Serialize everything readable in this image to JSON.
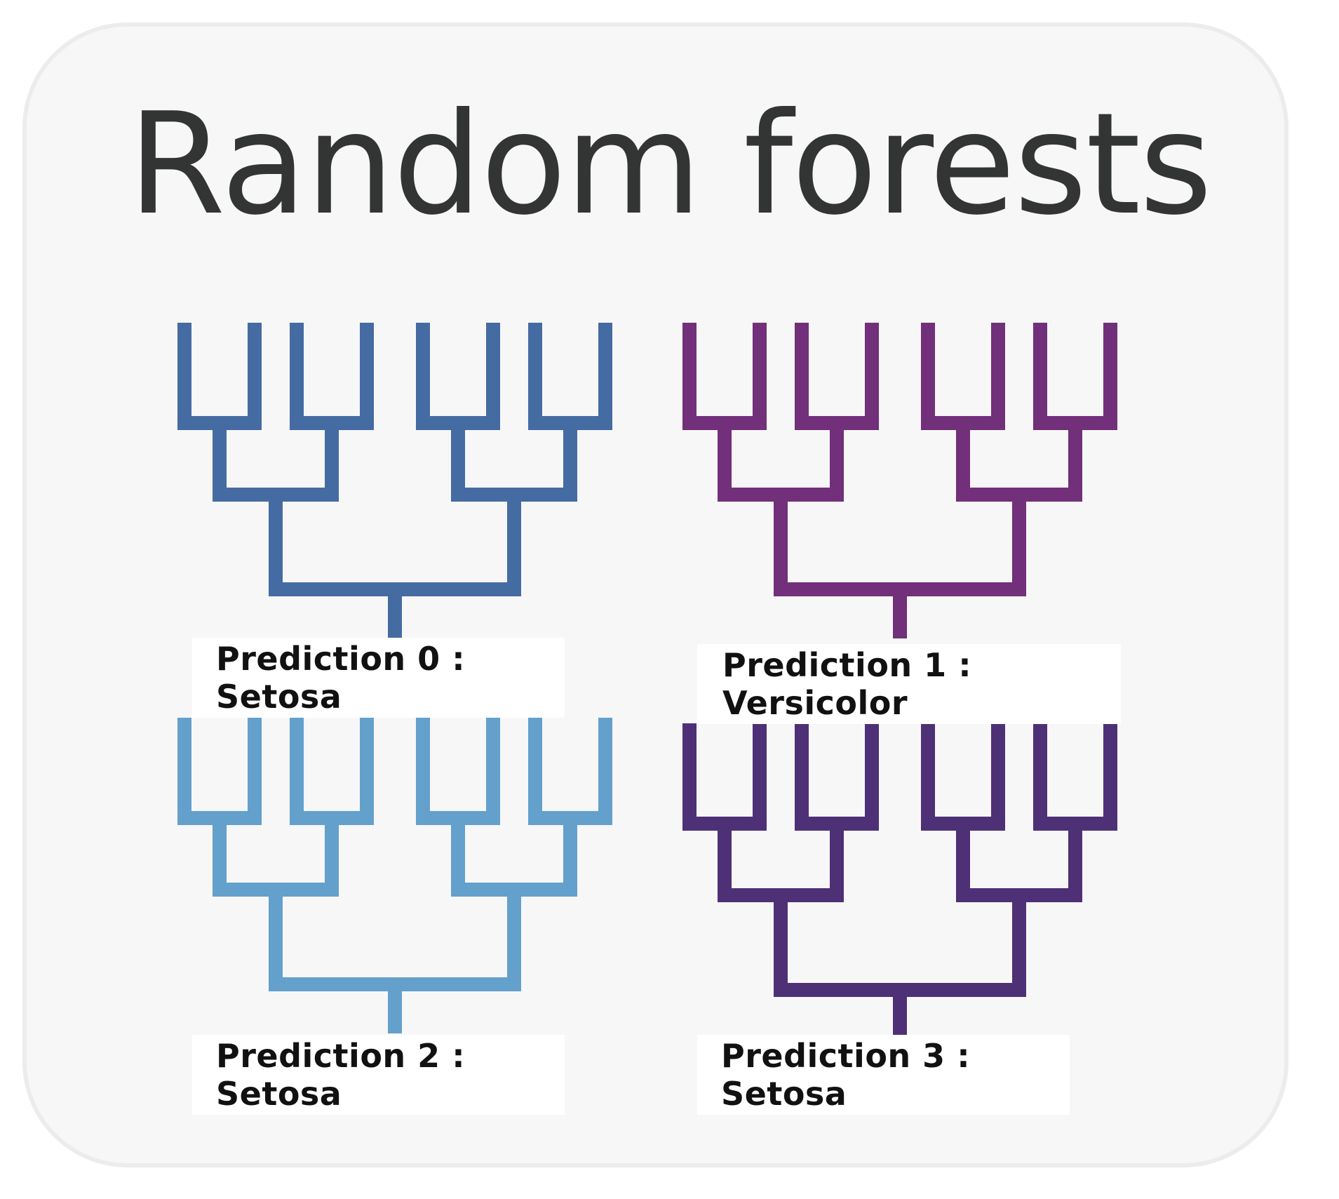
{
  "title": "Random forests",
  "trees": [
    {
      "id": 0,
      "color": "#456ba3",
      "prediction": "Prediction 0 : Setosa"
    },
    {
      "id": 1,
      "color": "#722f7a",
      "prediction": "Prediction 1 : Versicolor"
    },
    {
      "id": 2,
      "color": "#64a0cc",
      "prediction": "Prediction 2 : Setosa"
    },
    {
      "id": 3,
      "color": "#4e3077",
      "prediction": "Prediction 3 : Setosa"
    }
  ]
}
